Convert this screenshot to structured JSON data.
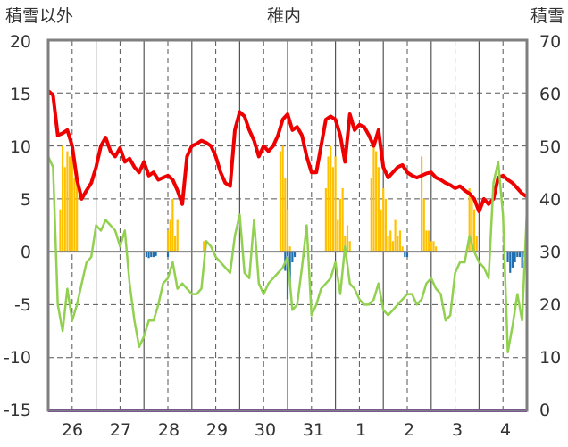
{
  "chart_data": {
    "type": "bar+line",
    "title": "稚内",
    "left_axis_label": "積雪以外",
    "right_axis_label": "積雪",
    "left_ylim": [
      -15,
      20
    ],
    "left_ticks": [
      "20",
      "15",
      "10",
      "5",
      "0",
      "-5",
      "-10",
      "-15"
    ],
    "right_ylim": [
      0,
      70
    ],
    "right_ticks": [
      "70",
      "60",
      "50",
      "40",
      "30",
      "20",
      "10",
      "0"
    ],
    "x_range": [
      0,
      10
    ],
    "day_labels": [
      "26",
      "27",
      "28",
      "29",
      "30",
      "31",
      "1",
      "2",
      "3",
      "4"
    ],
    "colors": {
      "red_series": "#ee0000",
      "green_series": "#92d050",
      "orange_bars": "#ffc000",
      "blue_bars": "#1f6fb0",
      "snow_depth": "#7030a0",
      "grid": "#555555",
      "zero_line": "#7f7f7f"
    },
    "series": [
      {
        "kind": "line",
        "color_key": "red_series",
        "x": [
          0.0,
          0.1,
          0.2,
          0.3,
          0.4,
          0.5,
          0.6,
          0.7,
          0.8,
          0.9,
          1.0,
          1.1,
          1.2,
          1.3,
          1.4,
          1.5,
          1.6,
          1.7,
          1.8,
          1.9,
          2.0,
          2.1,
          2.2,
          2.3,
          2.4,
          2.5,
          2.6,
          2.7,
          2.8,
          2.9,
          3.0,
          3.1,
          3.2,
          3.3,
          3.4,
          3.5,
          3.6,
          3.7,
          3.8,
          3.9,
          4.0,
          4.1,
          4.2,
          4.3,
          4.4,
          4.5,
          4.6,
          4.7,
          4.8,
          4.9,
          5.0,
          5.1,
          5.2,
          5.3,
          5.4,
          5.5,
          5.6,
          5.7,
          5.8,
          5.9,
          6.0,
          6.1,
          6.2,
          6.3,
          6.4,
          6.5,
          6.6,
          6.7,
          6.8,
          6.9,
          7.0,
          7.1,
          7.2,
          7.3,
          7.4,
          7.5,
          7.6,
          7.7,
          7.8,
          7.9,
          8.0,
          8.1,
          8.2,
          8.3,
          8.4,
          8.5,
          8.6,
          8.7,
          8.8,
          8.9,
          9.0,
          9.1,
          9.2,
          9.3,
          9.4,
          9.5,
          9.6,
          9.7,
          9.8,
          9.9,
          10.0
        ],
        "values": [
          15.2,
          14.8,
          11.0,
          11.2,
          11.5,
          10.0,
          6.8,
          5.0,
          5.8,
          6.5,
          8.0,
          10.0,
          10.8,
          9.5,
          9.0,
          9.8,
          8.5,
          8.8,
          8.0,
          7.5,
          8.5,
          7.2,
          7.5,
          6.8,
          7.0,
          7.2,
          6.8,
          5.8,
          4.5,
          9.0,
          10.0,
          10.2,
          10.5,
          10.3,
          10.0,
          9.0,
          7.5,
          6.5,
          6.2,
          11.5,
          13.2,
          12.8,
          11.5,
          10.5,
          9.0,
          10.0,
          9.5,
          10.0,
          11.0,
          12.5,
          13.0,
          11.5,
          11.8,
          11.0,
          9.0,
          7.5,
          7.5,
          10.0,
          12.5,
          12.8,
          12.5,
          11.0,
          8.5,
          13.0,
          11.5,
          12.0,
          11.8,
          11.0,
          10.0,
          11.5,
          8.0,
          7.0,
          7.5,
          8.0,
          8.2,
          7.5,
          7.2,
          7.0,
          7.2,
          7.4,
          7.5,
          7.0,
          6.8,
          6.5,
          6.3,
          6.0,
          6.2,
          5.8,
          5.5,
          5.0,
          3.8,
          5.0,
          4.5,
          5.0,
          7.0,
          7.2,
          6.8,
          6.5,
          6.0,
          5.5,
          5.2
        ]
      },
      {
        "kind": "line",
        "color_key": "green_series",
        "x": [
          0.0,
          0.1,
          0.2,
          0.3,
          0.4,
          0.5,
          0.6,
          0.7,
          0.8,
          0.9,
          1.0,
          1.1,
          1.2,
          1.3,
          1.4,
          1.5,
          1.6,
          1.7,
          1.8,
          1.9,
          2.0,
          2.1,
          2.2,
          2.3,
          2.4,
          2.5,
          2.6,
          2.7,
          2.8,
          2.9,
          3.0,
          3.1,
          3.2,
          3.3,
          3.4,
          3.5,
          3.6,
          3.7,
          3.8,
          3.9,
          4.0,
          4.1,
          4.2,
          4.3,
          4.4,
          4.5,
          4.6,
          4.7,
          4.8,
          4.9,
          5.0,
          5.1,
          5.2,
          5.3,
          5.4,
          5.5,
          5.6,
          5.7,
          5.8,
          5.9,
          6.0,
          6.1,
          6.2,
          6.3,
          6.4,
          6.5,
          6.6,
          6.7,
          6.8,
          6.9,
          7.0,
          7.1,
          7.2,
          7.3,
          7.4,
          7.5,
          7.6,
          7.7,
          7.8,
          7.9,
          8.0,
          8.1,
          8.2,
          8.3,
          8.4,
          8.5,
          8.6,
          8.7,
          8.8,
          8.9,
          9.0,
          9.1,
          9.2,
          9.3,
          9.4,
          9.5,
          9.6,
          9.7,
          9.8,
          9.9,
          10.0
        ],
        "values": [
          9.0,
          8.0,
          -5.0,
          -7.5,
          -3.5,
          -6.5,
          -5.0,
          -3.0,
          -1.0,
          -0.5,
          2.5,
          2.0,
          3.0,
          2.5,
          2.0,
          0.5,
          2.0,
          -3.0,
          -6.5,
          -9.0,
          -8.0,
          -6.5,
          -6.5,
          -5.0,
          -3.0,
          -2.5,
          -1.0,
          -3.5,
          -3.0,
          -3.5,
          -4.0,
          -4.0,
          -3.5,
          1.0,
          0.5,
          -0.5,
          -1.0,
          -1.5,
          -2.0,
          1.5,
          3.5,
          -2.0,
          -2.5,
          3.0,
          -3.0,
          -4.0,
          -3.0,
          -2.5,
          -2.0,
          -1.5,
          -0.5,
          -5.5,
          -5.0,
          -1.5,
          2.5,
          -6.0,
          -5.0,
          -3.5,
          -3.0,
          -2.5,
          -1.0,
          -4.0,
          0.5,
          -3.0,
          -3.5,
          -4.5,
          -5.0,
          -5.0,
          -4.5,
          -3.0,
          -5.5,
          -6.0,
          -5.5,
          -5.0,
          -4.5,
          -4.0,
          -4.0,
          -5.0,
          -4.5,
          -3.0,
          -2.5,
          -3.5,
          -4.0,
          -6.5,
          -6.0,
          -2.0,
          -1.0,
          -1.0,
          1.5,
          0.0,
          -1.0,
          -1.5,
          -2.5,
          6.5,
          8.5,
          3.5,
          -9.5,
          -7.0,
          -4.0,
          -6.5,
          4.0
        ]
      },
      {
        "kind": "bar",
        "color_key": "orange_bars",
        "x": [
          0.25,
          0.3,
          0.35,
          0.4,
          0.45,
          0.5,
          0.55,
          0.6,
          2.5,
          2.55,
          2.6,
          2.65,
          2.7,
          3.25,
          4.85,
          4.9,
          4.95,
          5.0,
          5.05,
          5.8,
          5.85,
          5.9,
          5.95,
          6.0,
          6.05,
          6.1,
          6.15,
          6.2,
          6.25,
          6.3,
          6.75,
          6.8,
          6.85,
          6.9,
          6.95,
          7.0,
          7.05,
          7.1,
          7.15,
          7.2,
          7.25,
          7.3,
          7.35,
          7.4,
          7.8,
          7.85,
          7.9,
          7.95,
          8.0,
          8.05,
          8.1,
          8.8,
          8.85,
          8.9,
          8.95
        ],
        "values": [
          4.0,
          10.0,
          8.0,
          9.5,
          9.0,
          10.0,
          7.0,
          7.5,
          2.0,
          3.0,
          5.0,
          1.5,
          3.0,
          1.0,
          9.5,
          10.0,
          7.0,
          4.0,
          0.5,
          6.0,
          9.0,
          10.0,
          8.0,
          9.0,
          3.0,
          5.0,
          6.0,
          1.5,
          2.5,
          1.0,
          7.0,
          10.0,
          9.5,
          8.0,
          4.0,
          6.0,
          5.0,
          1.5,
          2.0,
          1.0,
          3.0,
          1.5,
          2.0,
          0.5,
          9.0,
          5.0,
          2.0,
          2.0,
          1.0,
          1.0,
          0.5,
          6.0,
          5.0,
          4.0,
          1.5
        ]
      },
      {
        "kind": "bar",
        "color_key": "blue_bars",
        "x": [
          2.05,
          2.1,
          2.15,
          2.2,
          2.25,
          2.5,
          4.95,
          5.0,
          5.05,
          5.1,
          5.15,
          5.35,
          7.45,
          7.5,
          9.6,
          9.65,
          9.7,
          9.75,
          9.8,
          9.85,
          9.9,
          9.95
        ],
        "values": [
          -0.5,
          -0.6,
          -0.5,
          -0.5,
          -0.4,
          -0.5,
          -1.8,
          -4.5,
          -3.0,
          -1.0,
          -0.5,
          -0.5,
          -0.5,
          -0.5,
          -1.0,
          -2.0,
          -1.5,
          -1.0,
          -0.5,
          -0.5,
          -1.5,
          -0.5
        ]
      },
      {
        "kind": "line",
        "axis": "right",
        "color_key": "snow_depth",
        "x": [
          0,
          10
        ],
        "values": [
          0,
          0
        ]
      }
    ]
  }
}
